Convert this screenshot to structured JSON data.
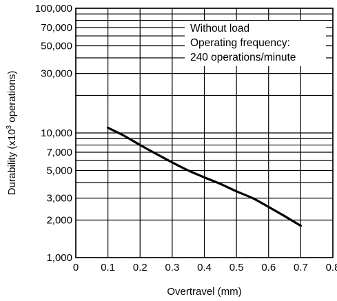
{
  "chart_data": {
    "type": "line",
    "title": "",
    "xlabel": "Overtravel (mm)",
    "ylabel": {
      "main": "Durability (x10",
      "superscript": "3",
      "suffix": " operations)"
    },
    "x_scale": "linear",
    "y_scale": "log",
    "xlim": [
      0,
      0.8
    ],
    "ylim": [
      1000,
      100000
    ],
    "x_ticks": [
      {
        "value": 0,
        "label": "0"
      },
      {
        "value": 0.1,
        "label": "0.1"
      },
      {
        "value": 0.2,
        "label": "0.2"
      },
      {
        "value": 0.3,
        "label": "0.3"
      },
      {
        "value": 0.4,
        "label": "0.4"
      },
      {
        "value": 0.5,
        "label": "0.5"
      },
      {
        "value": 0.6,
        "label": "0.6"
      },
      {
        "value": 0.7,
        "label": "0.7"
      },
      {
        "value": 0.8,
        "label": "0.8"
      }
    ],
    "y_ticks": [
      {
        "value": 100000,
        "label": "100,000"
      },
      {
        "value": 70000,
        "label": "70,000"
      },
      {
        "value": 50000,
        "label": "50,000"
      },
      {
        "value": 30000,
        "label": "30,000"
      },
      {
        "value": 10000,
        "label": "10,000"
      },
      {
        "value": 7000,
        "label": "7,000"
      },
      {
        "value": 5000,
        "label": "5,000"
      },
      {
        "value": 3000,
        "label": "3,000"
      },
      {
        "value": 2000,
        "label": "2,000"
      },
      {
        "value": 1000,
        "label": "1,000"
      }
    ],
    "y_gridlines": [
      1000,
      2000,
      3000,
      4000,
      5000,
      6000,
      7000,
      8000,
      9000,
      10000,
      20000,
      30000,
      40000,
      50000,
      60000,
      70000,
      80000,
      90000,
      100000
    ],
    "x_gridlines": [
      0,
      0.1,
      0.2,
      0.3,
      0.4,
      0.5,
      0.6,
      0.7,
      0.8
    ],
    "grid": true,
    "annotation": {
      "position": "top-right",
      "lines": [
        "Without load",
        "Operating frequency:",
        "240 operations/minute"
      ]
    },
    "series": [
      {
        "color": "#000000",
        "x": [
          0.1,
          0.15,
          0.2,
          0.25,
          0.3,
          0.35,
          0.4,
          0.45,
          0.5,
          0.55,
          0.6,
          0.65,
          0.7
        ],
        "y": [
          11000,
          9500,
          8000,
          6800,
          5800,
          5000,
          4400,
          3900,
          3400,
          3000,
          2550,
          2150,
          1800
        ]
      }
    ]
  }
}
